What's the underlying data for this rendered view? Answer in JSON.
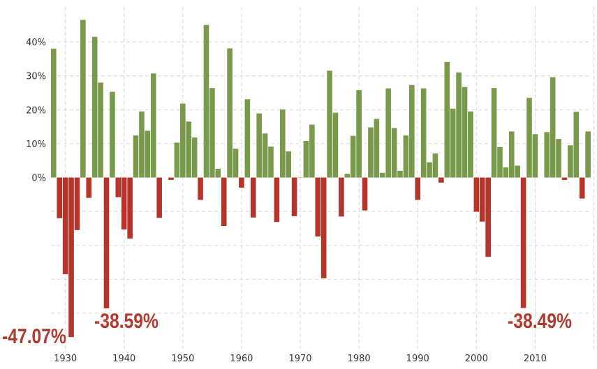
{
  "chart_data": {
    "type": "bar",
    "title": "",
    "xlabel": "",
    "ylabel": "",
    "ylim": [
      -50,
      50
    ],
    "grid": true,
    "legend": "none",
    "colors": {
      "positive": "#7a9a4b",
      "negative": "#b5352b",
      "grid": "#d9d9d9",
      "annotation": "#b03a2e"
    },
    "y_ticks": [
      {
        "value": 40,
        "label": "40%"
      },
      {
        "value": 30,
        "label": "30%"
      },
      {
        "value": 20,
        "label": "20%"
      },
      {
        "value": 10,
        "label": "10%"
      },
      {
        "value": 0,
        "label": "0%"
      }
    ],
    "x_ticks": [
      {
        "value": 1930,
        "label": "1930"
      },
      {
        "value": 1940,
        "label": "1940"
      },
      {
        "value": 1950,
        "label": "1950"
      },
      {
        "value": 1960,
        "label": "1960"
      },
      {
        "value": 1970,
        "label": "1970"
      },
      {
        "value": 1980,
        "label": "1980"
      },
      {
        "value": 1990,
        "label": "1990"
      },
      {
        "value": 2000,
        "label": "2000"
      },
      {
        "value": 2010,
        "label": "2010"
      }
    ],
    "years": [
      1928,
      1929,
      1930,
      1931,
      1932,
      1933,
      1934,
      1935,
      1936,
      1937,
      1938,
      1939,
      1940,
      1941,
      1942,
      1943,
      1944,
      1945,
      1946,
      1947,
      1948,
      1949,
      1950,
      1951,
      1952,
      1953,
      1954,
      1955,
      1956,
      1957,
      1958,
      1959,
      1960,
      1961,
      1962,
      1963,
      1964,
      1965,
      1966,
      1967,
      1968,
      1969,
      1970,
      1971,
      1972,
      1973,
      1974,
      1975,
      1976,
      1977,
      1978,
      1979,
      1980,
      1981,
      1982,
      1983,
      1984,
      1985,
      1986,
      1987,
      1988,
      1989,
      1990,
      1991,
      1992,
      1993,
      1994,
      1995,
      1996,
      1997,
      1998,
      1999,
      2000,
      2001,
      2002,
      2003,
      2004,
      2005,
      2006,
      2007,
      2008,
      2009,
      2010,
      2011,
      2012,
      2013,
      2014,
      2015,
      2016,
      2017,
      2018,
      2019
    ],
    "values": [
      38.0,
      -12.0,
      -28.5,
      -47.07,
      -15.5,
      46.5,
      -6.0,
      41.5,
      28.0,
      -38.59,
      25.3,
      -5.8,
      -15.3,
      -18.0,
      12.4,
      19.5,
      13.8,
      30.7,
      -11.9,
      0.0,
      -0.7,
      10.3,
      21.8,
      16.5,
      11.8,
      -6.6,
      45.0,
      26.4,
      2.6,
      -14.3,
      38.1,
      8.5,
      -3.0,
      23.1,
      -11.8,
      18.9,
      13.0,
      9.1,
      -13.1,
      20.1,
      7.7,
      -11.4,
      0.1,
      10.8,
      15.6,
      -17.4,
      -29.7,
      31.5,
      19.1,
      -11.5,
      1.1,
      12.3,
      25.8,
      -9.7,
      14.8,
      17.3,
      1.4,
      26.3,
      14.6,
      2.0,
      12.4,
      27.3,
      -6.6,
      26.3,
      4.5,
      7.1,
      -1.5,
      34.1,
      20.3,
      31.0,
      26.7,
      19.5,
      -10.1,
      -13.0,
      -23.4,
      26.4,
      9.0,
      3.0,
      13.6,
      3.5,
      -38.49,
      23.5,
      12.8,
      0.0,
      13.4,
      29.6,
      11.4,
      -0.7,
      9.5,
      19.4,
      -6.2,
      13.6
    ],
    "annotations": [
      {
        "year": 1931,
        "text": "-47.07%"
      },
      {
        "year": 1937,
        "text": "-38.59%"
      },
      {
        "year": 2008,
        "text": "-38.49%"
      }
    ]
  }
}
